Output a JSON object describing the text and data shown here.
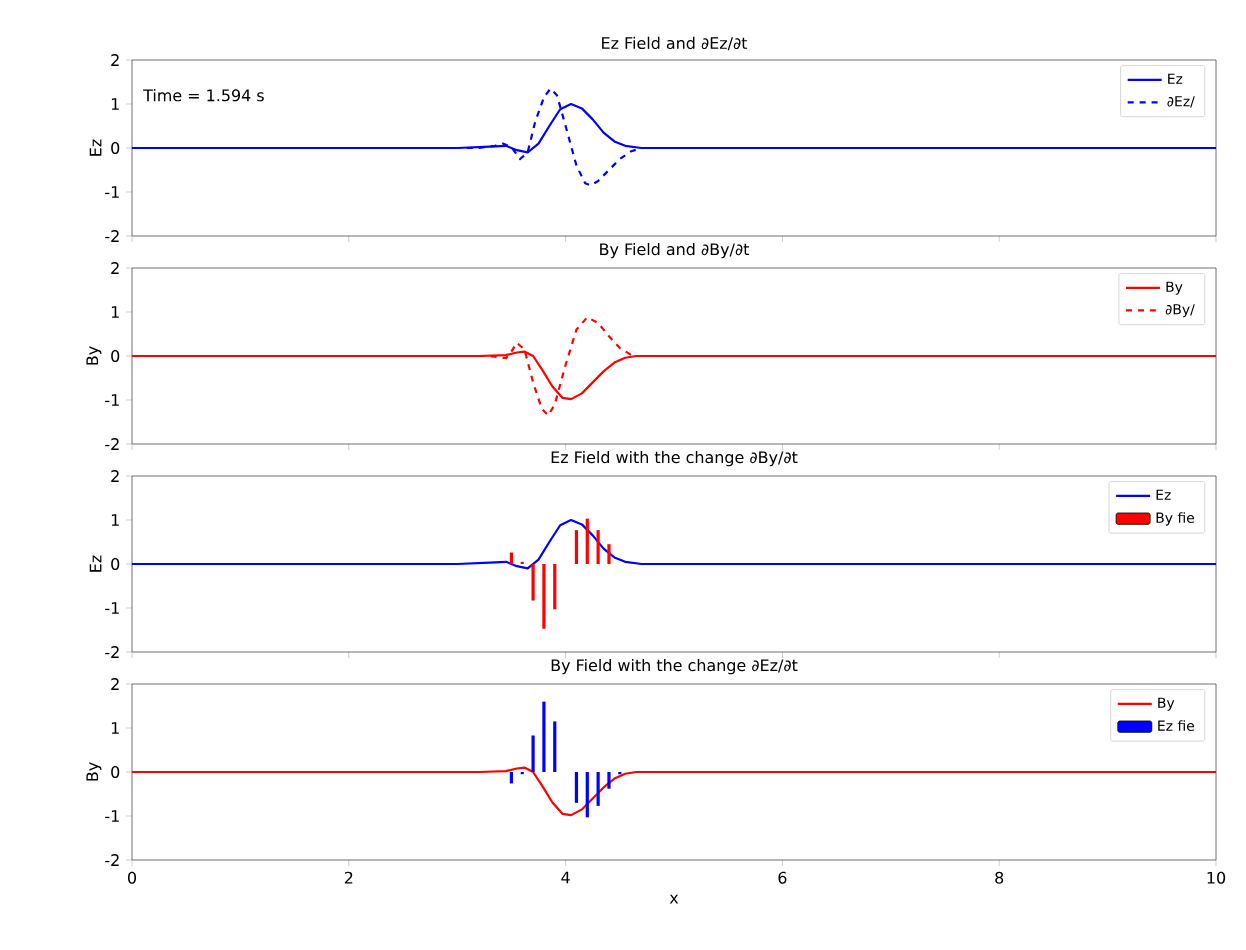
{
  "chart_data": [
    {
      "type": "line",
      "title": "Ez Field and ∂Ez/∂t",
      "ylabel": "Ez",
      "xlim": [
        0,
        10
      ],
      "ylim": [
        -2,
        2
      ],
      "xticks": [
        0,
        2,
        4,
        6,
        8,
        10
      ],
      "yticks": [
        -2,
        -1,
        0,
        1,
        2
      ],
      "tick_labels": "y",
      "legend": "top right",
      "annotations": [
        "Time = 1.594 s"
      ],
      "series": [
        {
          "name": "Ez",
          "color": "#0000ff",
          "line_style": "solid",
          "x": [
            0,
            3.0,
            3.3,
            3.45,
            3.55,
            3.65,
            3.75,
            3.85,
            3.95,
            4.05,
            4.15,
            4.25,
            4.35,
            4.45,
            4.55,
            4.7,
            10
          ],
          "values": [
            0,
            0,
            0.03,
            0.05,
            -0.05,
            -0.1,
            0.1,
            0.5,
            0.88,
            1.0,
            0.9,
            0.65,
            0.35,
            0.15,
            0.05,
            0,
            0
          ]
        },
        {
          "name": "∂Ez/",
          "color": "#0000ff",
          "line_style": "dashed",
          "x": [
            0,
            3.2,
            3.35,
            3.42,
            3.5,
            3.58,
            3.65,
            3.72,
            3.8,
            3.86,
            3.92,
            4.0,
            4.1,
            4.18,
            4.23,
            4.3,
            4.4,
            4.5,
            4.6,
            4.7,
            10
          ],
          "values": [
            0,
            0,
            0.05,
            0.1,
            0.02,
            -0.25,
            -0.1,
            0.6,
            1.15,
            1.35,
            1.2,
            0.5,
            -0.4,
            -0.8,
            -0.85,
            -0.75,
            -0.5,
            -0.25,
            -0.08,
            0,
            0
          ]
        }
      ]
    },
    {
      "type": "line",
      "title": "By Field and ∂By/∂t",
      "ylabel": "By",
      "xlim": [
        0,
        10
      ],
      "ylim": [
        -2,
        2
      ],
      "xticks": [
        0,
        2,
        4,
        6,
        8,
        10
      ],
      "yticks": [
        -2,
        -1,
        0,
        1,
        2
      ],
      "tick_labels": "y",
      "legend": "top right",
      "series": [
        {
          "name": "By",
          "color": "#ff0000",
          "line_style": "solid",
          "x": [
            0,
            3.2,
            3.45,
            3.55,
            3.62,
            3.7,
            3.78,
            3.88,
            3.97,
            4.05,
            4.15,
            4.25,
            4.35,
            4.45,
            4.55,
            4.65,
            10
          ],
          "values": [
            0,
            0,
            0.02,
            0.08,
            0.1,
            0.0,
            -0.3,
            -0.7,
            -0.95,
            -0.98,
            -0.85,
            -0.6,
            -0.35,
            -0.15,
            -0.04,
            0,
            0
          ]
        },
        {
          "name": "∂By/",
          "color": "#ff0000",
          "line_style": "dashed",
          "x": [
            0,
            3.3,
            3.45,
            3.5,
            3.55,
            3.62,
            3.7,
            3.78,
            3.84,
            3.9,
            4.0,
            4.1,
            4.2,
            4.3,
            4.4,
            4.5,
            4.6,
            4.65,
            10
          ],
          "values": [
            0,
            0,
            -0.05,
            0.1,
            0.3,
            0.15,
            -0.6,
            -1.2,
            -1.35,
            -1.1,
            -0.2,
            0.6,
            0.88,
            0.75,
            0.45,
            0.18,
            0.03,
            0,
            0
          ]
        }
      ]
    },
    {
      "type": "line",
      "title": "Ez Field with the change ∂By/∂t",
      "ylabel": "Ez",
      "xlim": [
        0,
        10
      ],
      "ylim": [
        -2,
        2
      ],
      "xticks": [
        0,
        2,
        4,
        6,
        8,
        10
      ],
      "yticks": [
        -2,
        -1,
        0,
        1,
        2
      ],
      "tick_labels": "y",
      "legend": "top right",
      "series": [
        {
          "name": "Ez",
          "color": "#0000ff",
          "line_style": "solid",
          "x": [
            0,
            3.0,
            3.3,
            3.45,
            3.55,
            3.65,
            3.75,
            3.85,
            3.95,
            4.05,
            4.15,
            4.25,
            4.35,
            4.45,
            4.55,
            4.7,
            10
          ],
          "values": [
            0,
            0,
            0.03,
            0.05,
            -0.05,
            -0.1,
            0.1,
            0.5,
            0.88,
            1.0,
            0.9,
            0.65,
            0.35,
            0.15,
            0.05,
            0,
            0
          ]
        },
        {
          "type": "bar",
          "name": "By fie",
          "color": "#ff0000",
          "x": [
            3.5,
            3.6,
            3.7,
            3.8,
            3.9,
            4.0,
            4.1,
            4.2,
            4.3,
            4.4
          ],
          "values": [
            0.26,
            0.05,
            -0.83,
            -1.47,
            -1.03,
            null,
            0.77,
            1.03,
            0.77,
            0.45
          ]
        }
      ]
    },
    {
      "type": "line",
      "title": "By Field with the change ∂Ez/∂t",
      "ylabel": "By",
      "xlabel": "x",
      "xlim": [
        0,
        10
      ],
      "ylim": [
        -2,
        2
      ],
      "xticks": [
        0,
        2,
        4,
        6,
        8,
        10
      ],
      "yticks": [
        -2,
        -1,
        0,
        1,
        2
      ],
      "legend": "top right",
      "series": [
        {
          "name": "By",
          "color": "#ff0000",
          "line_style": "solid",
          "x": [
            0,
            3.2,
            3.45,
            3.55,
            3.62,
            3.7,
            3.78,
            3.88,
            3.97,
            4.05,
            4.15,
            4.25,
            4.35,
            4.45,
            4.55,
            4.65,
            10
          ],
          "values": [
            0,
            0,
            0.02,
            0.08,
            0.1,
            0.0,
            -0.3,
            -0.7,
            -0.95,
            -0.98,
            -0.85,
            -0.6,
            -0.35,
            -0.15,
            -0.04,
            0,
            0
          ]
        },
        {
          "type": "bar",
          "name": "Ez fie",
          "color": "#0000ff",
          "x": [
            3.5,
            3.6,
            3.7,
            3.8,
            3.9,
            4.0,
            4.1,
            4.2,
            4.3,
            4.4,
            4.5
          ],
          "values": [
            -0.26,
            -0.05,
            0.83,
            1.6,
            1.15,
            null,
            -0.7,
            -1.03,
            -0.77,
            -0.38,
            -0.05
          ]
        }
      ]
    }
  ]
}
